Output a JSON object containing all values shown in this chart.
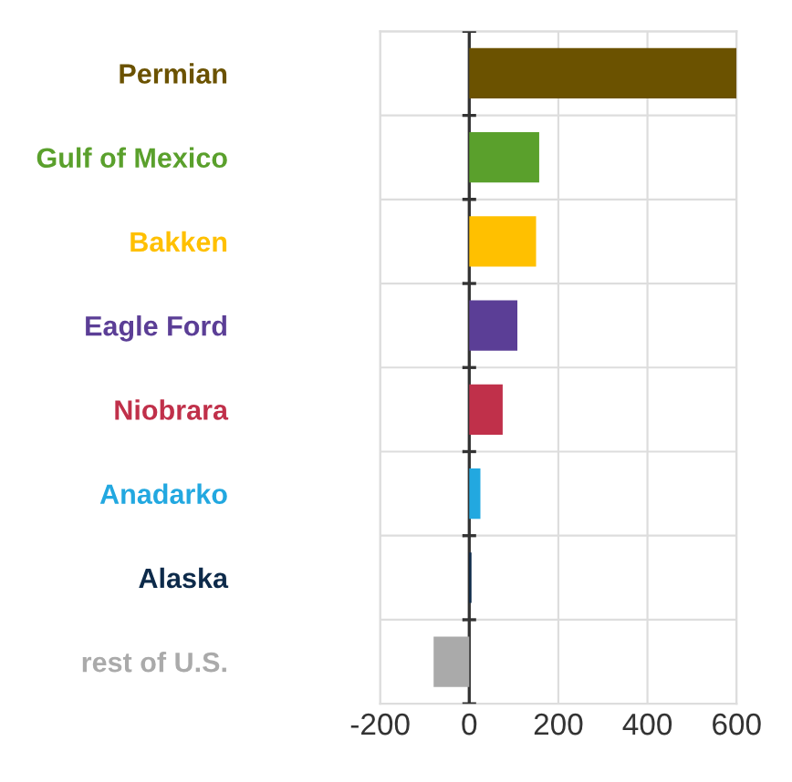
{
  "chart_data": {
    "type": "bar",
    "orientation": "horizontal",
    "categories": [
      "Permian",
      "Gulf of Mexico",
      "Bakken",
      "Eagle Ford",
      "Niobrara",
      "Anadarko",
      "Alaska",
      "rest of U.S."
    ],
    "values": [
      600,
      157,
      150,
      108,
      75,
      25,
      5,
      -80
    ],
    "colors": [
      "#6b5200",
      "#5aa02c",
      "#ffc000",
      "#5b3e96",
      "#c0304a",
      "#22a8e0",
      "#0d2a4a",
      "#aaaaaa"
    ],
    "xlim": [
      -200,
      600
    ],
    "xticks": [
      -200,
      0,
      200,
      400,
      600
    ],
    "grid": true
  }
}
